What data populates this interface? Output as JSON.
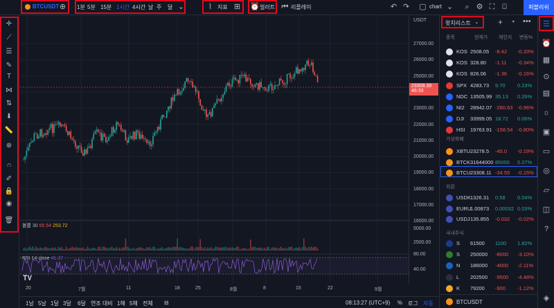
{
  "topbar": {
    "symbol": "BTCUSDT",
    "intervals": [
      "1분",
      "5분",
      "15분",
      "1시간",
      "4시간",
      "날",
      "주",
      "달"
    ],
    "active_interval": "1시간",
    "indicators_label": "지표",
    "alert_label": "얼러트",
    "replay_label": "리플레이",
    "layout_label": "chart",
    "publish_label": "퍼블리쉬"
  },
  "chart": {
    "volume_legend": {
      "label": "볼륨",
      "period": "30",
      "value1": "65.54",
      "value2": "253.72"
    },
    "rsi_legend": {
      "label": "RSI",
      "params": "14 close",
      "value": "41.37"
    },
    "price_labels": [
      "27000.00",
      "26000.00",
      "25000.00",
      "24000.00",
      "23000.00",
      "22000.00",
      "21000.00",
      "20000.00",
      "19000.00",
      "18000.00",
      "17000.00",
      "16000.00"
    ],
    "currency": "USDT",
    "current_price": "23308.39",
    "countdown": "46:33",
    "volume_labels": [
      "5000.00",
      "2500.00"
    ],
    "rsi_labels": [
      "80.00",
      "40.00"
    ],
    "x_labels": [
      "20",
      "7월",
      "11",
      "18",
      "25",
      "8월",
      "8",
      "15",
      "22",
      "9월"
    ],
    "colors": {
      "up": "#26a69a",
      "down": "#ef5350",
      "rsi": "#7e57c2"
    }
  },
  "bottombar": {
    "ranges": [
      "1날",
      "5날",
      "1달",
      "3달",
      "6달",
      "연조 대비",
      "1해",
      "5해",
      "전체"
    ],
    "time": "08:13:27 (UTC+9)",
    "percent": "%",
    "log": "로그",
    "auto": "자동"
  },
  "watchlist": {
    "title": "왓치리스트",
    "headers": {
      "symbol": "종목",
      "last": "현재가",
      "change": "체인지",
      "pct": "변동%"
    },
    "rows": [
      {
        "sym": "KOS",
        "last": "2508.05",
        "chg": "-8.42",
        "pct": "-0.33%",
        "dir": "dn",
        "color": "#e0e3eb"
      },
      {
        "sym": "KOS",
        "last": "328.80",
        "chg": "-1.11",
        "pct": "-0.34%",
        "dir": "dn",
        "color": "#e0e3eb"
      },
      {
        "sym": "KOS",
        "last": "826.06",
        "chg": "-1.36",
        "pct": "-0.16%",
        "dir": "dn",
        "color": "#e0e3eb"
      },
      {
        "sym": "SPX",
        "last": "4283.73",
        "chg": "9.70",
        "pct": "0.23%",
        "dir": "up",
        "color": "#e53935"
      },
      {
        "sym": "NDC",
        "last": "13505.99",
        "chg": "35.13",
        "pct": "0.26%",
        "dir": "up",
        "color": "#2962ff"
      },
      {
        "sym": "NI2",
        "last": "28942.07",
        "chg": "-280.63",
        "pct": "-0.96%",
        "dir": "dn",
        "color": "#2962ff"
      },
      {
        "sym": "DJI",
        "last": "33999.05",
        "chg": "18.72",
        "pct": "0.06%",
        "dir": "up",
        "color": "#2962ff"
      },
      {
        "sym": "HSI",
        "last": "19763.91",
        "chg": "-158.54",
        "pct": "-0.80%",
        "dir": "dn",
        "color": "#e53935"
      }
    ],
    "crypto_section": "가상화폐",
    "crypto_rows": [
      {
        "sym": "XBTU",
        "last": "23278.5",
        "chg": "-45.0",
        "pct": "-0.19%",
        "dir": "dn"
      },
      {
        "sym": "BTCK",
        "last": "31644000",
        "chg": "85000",
        "pct": "0.27%",
        "dir": "up"
      },
      {
        "sym": "BTCU",
        "last": "23308.11",
        "chg": "-34.55",
        "pct": "-0.15%",
        "dir": "dn"
      }
    ],
    "fx_section": "외환",
    "fx_rows": [
      {
        "sym": "USDK",
        "last": "1326.31",
        "chg": "0.58",
        "pct": "0.04%",
        "dir": "up"
      },
      {
        "sym": "EURU",
        "last": "1.00873",
        "chg": "0.00032",
        "pct": "0.03%",
        "dir": "up"
      },
      {
        "sym": "USDJ",
        "last": "135.855",
        "chg": "-0.032",
        "pct": "-0.02%",
        "dir": "dn"
      }
    ],
    "stock_section": "국내주식",
    "stock_rows": [
      {
        "sym": "S",
        "last": "61500",
        "chg": "1100",
        "pct": "1.82%",
        "dir": "up",
        "color": "#1e3a8a"
      },
      {
        "sym": "S",
        "last": "250000",
        "chg": "-8000",
        "pct": "-3.10%",
        "dir": "dn",
        "color": "#2e7d32"
      },
      {
        "sym": "N",
        "last": "186000",
        "chg": "-4000",
        "pct": "-2.11%",
        "dir": "dn",
        "color": "#1565c0"
      },
      {
        "sym": "L",
        "last": "202500",
        "chg": "-9500",
        "pct": "-4.48%",
        "dir": "dn",
        "color": "#263238"
      },
      {
        "sym": "K",
        "last": "79200",
        "chg": "-900",
        "pct": "-1.12%",
        "dir": "dn",
        "color": "#f9a825"
      }
    ],
    "footer_symbol": "BTCUSDT"
  }
}
